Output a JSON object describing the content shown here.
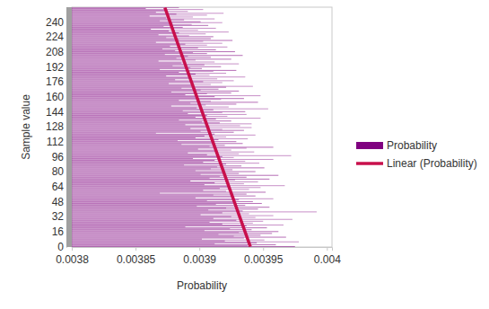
{
  "chart_data": {
    "type": "bar",
    "orientation": "horizontal",
    "legend": "right",
    "x_label": "Sample value",
    "y_label": "Probability",
    "x": [
      0,
      1,
      2,
      3,
      4,
      5,
      6,
      7,
      8,
      9,
      10,
      11,
      12,
      13,
      14,
      15,
      16,
      17,
      18,
      19,
      20,
      21,
      22,
      23,
      24,
      25,
      26,
      27,
      28,
      29,
      30,
      31,
      32,
      33,
      34,
      35,
      36,
      37,
      38,
      39,
      40,
      41,
      42,
      43,
      44,
      45,
      46,
      47,
      48,
      49,
      50,
      51,
      52,
      53,
      54,
      55,
      56,
      57,
      58,
      59,
      60,
      61,
      62,
      63,
      64,
      65,
      66,
      67,
      68,
      69,
      70,
      71,
      72,
      73,
      74,
      75,
      76,
      77,
      78,
      79,
      80,
      81,
      82,
      83,
      84,
      85,
      86,
      87,
      88,
      89,
      90,
      91,
      92,
      93,
      94,
      95,
      96,
      97,
      98,
      99,
      100,
      101,
      102,
      103,
      104,
      105,
      106,
      107,
      108,
      109,
      110,
      111,
      112,
      113,
      114,
      115,
      116,
      117,
      118,
      119,
      120,
      121,
      122,
      123,
      124,
      125,
      126,
      127,
      128,
      129,
      130,
      131,
      132,
      133,
      134,
      135,
      136,
      137,
      138,
      139,
      140,
      141,
      142,
      143,
      144,
      145,
      146,
      147,
      148,
      149,
      150,
      151,
      152,
      153,
      154,
      155,
      156,
      157,
      158,
      159,
      160,
      161,
      162,
      163,
      164,
      165,
      166,
      167,
      168,
      169,
      170,
      171,
      172,
      173,
      174,
      175,
      176,
      177,
      178,
      179,
      180,
      181,
      182,
      183,
      184,
      185,
      186,
      187,
      188,
      189,
      190,
      191,
      192,
      193,
      194,
      195,
      196,
      197,
      198,
      199,
      200,
      201,
      202,
      203,
      204,
      205,
      206,
      207,
      208,
      209,
      210,
      211,
      212,
      213,
      214,
      215,
      216,
      217,
      218,
      219,
      220,
      221,
      222,
      223,
      224,
      225,
      226,
      227,
      228,
      229,
      230,
      231,
      232,
      233,
      234,
      235,
      236,
      237,
      238,
      239,
      240,
      241,
      242,
      243,
      244,
      245,
      246,
      247,
      248,
      249,
      250,
      251,
      252,
      253,
      254,
      255
    ],
    "series": [
      {
        "name": "Probability",
        "type": "bar",
        "color": "#800080",
        "values": [
          0.003975,
          0.003938,
          0.00396,
          0.003912,
          0.003945,
          0.003978,
          0.00392,
          0.003951,
          0.003902,
          0.003935,
          0.003968,
          0.003927,
          0.003948,
          0.003915,
          0.003957,
          0.003931,
          0.003962,
          0.003904,
          0.003941,
          0.003924,
          0.003953,
          0.003889,
          0.003937,
          0.003966,
          0.003918,
          0.003942,
          0.003908,
          0.00395,
          0.003929,
          0.003973,
          0.003911,
          0.003944,
          0.003925,
          0.003958,
          0.003901,
          0.003939,
          0.003918,
          0.003992,
          0.003934,
          0.003907,
          0.003946,
          0.003921,
          0.003955,
          0.003898,
          0.003936,
          0.003913,
          0.003949,
          0.003927,
          0.003942,
          0.003906,
          0.003931,
          0.003958,
          0.003897,
          0.003926,
          0.003944,
          0.003911,
          0.003937,
          0.003869,
          0.003952,
          0.003921,
          0.003903,
          0.003939,
          0.003916,
          0.003948,
          0.003923,
          0.003967,
          0.003904,
          0.003935,
          0.003912,
          0.003946,
          0.003893,
          0.003928,
          0.003955,
          0.003908,
          0.003937,
          0.003916,
          0.003962,
          0.003901,
          0.003931,
          0.003919,
          0.003944,
          0.003897,
          0.003926,
          0.003909,
          0.003951,
          0.003914,
          0.003933,
          0.003888,
          0.003921,
          0.003947,
          0.003903,
          0.003936,
          0.003912,
          0.003958,
          0.003895,
          0.003927,
          0.003918,
          0.003972,
          0.003906,
          0.003931,
          0.003891,
          0.003943,
          0.003914,
          0.003925,
          0.003899,
          0.003937,
          0.003958,
          0.003908,
          0.00392,
          0.003886,
          0.003934,
          0.003911,
          0.003929,
          0.003883,
          0.003915,
          0.003938,
          0.003897,
          0.003921,
          0.003904,
          0.003944,
          0.003912,
          0.003866,
          0.003927,
          0.003901,
          0.003935,
          0.003918,
          0.003893,
          0.003941,
          0.003908,
          0.003932,
          0.003889,
          0.003941,
          0.003916,
          0.003902,
          0.003925,
          0.003884,
          0.003913,
          0.003948,
          0.003897,
          0.003922,
          0.003906,
          0.003937,
          0.003891,
          0.003918,
          0.003936,
          0.003887,
          0.003911,
          0.003954,
          0.003898,
          0.003923,
          0.003878,
          0.003905,
          0.003929,
          0.003893,
          0.003946,
          0.003909,
          0.003884,
          0.003917,
          0.003935,
          0.003899,
          0.003912,
          0.003948,
          0.003889,
          0.003906,
          0.003925,
          0.003878,
          0.003931,
          0.003901,
          0.003915,
          0.003886,
          0.003921,
          0.003942,
          0.003894,
          0.003909,
          0.003876,
          0.003918,
          0.003903,
          0.003927,
          0.003881,
          0.003914,
          0.003892,
          0.003936,
          0.003874,
          0.003908,
          0.003897,
          0.003921,
          0.003884,
          0.003911,
          0.003929,
          0.003869,
          0.003902,
          0.003893,
          0.003917,
          0.003879,
          0.003904,
          0.003931,
          0.003886,
          0.003912,
          0.003868,
          0.003897,
          0.003925,
          0.003882,
          0.003909,
          0.003891,
          0.003934,
          0.003873,
          0.003906,
          0.003895,
          0.003928,
          0.003881,
          0.003913,
          0.003871,
          0.003899,
          0.003922,
          0.003877,
          0.003906,
          0.003889,
          0.003918,
          0.003866,
          0.003903,
          0.003926,
          0.003884,
          0.003909,
          0.003874,
          0.003911,
          0.003892,
          0.003868,
          0.003905,
          0.003884,
          0.003923,
          0.003876,
          0.003899,
          0.003862,
          0.003913,
          0.003887,
          0.003872,
          0.003907,
          0.003894,
          0.003879,
          0.003918,
          0.003901,
          0.003869,
          0.003888,
          0.003912,
          0.003874,
          0.003895,
          0.003861,
          0.003906,
          0.003882,
          0.003919,
          0.003866,
          0.003891,
          0.003875,
          0.003903,
          0.003858,
          0.003884
        ]
      },
      {
        "name": "Linear (Probability)",
        "type": "line",
        "color": "#c8104c",
        "x": [
          0,
          255
        ],
        "values": [
          0.00394,
          0.003873
        ]
      }
    ],
    "xlim": [
      -0.5,
      255.5
    ],
    "xticks": [
      0,
      16,
      32,
      48,
      64,
      80,
      96,
      112,
      128,
      144,
      160,
      176,
      192,
      208,
      224,
      240
    ],
    "ylim": [
      0.0038,
      0.004004
    ],
    "yticks": [
      0.0038,
      0.00385,
      0.0039,
      0.00395,
      0.004
    ]
  }
}
